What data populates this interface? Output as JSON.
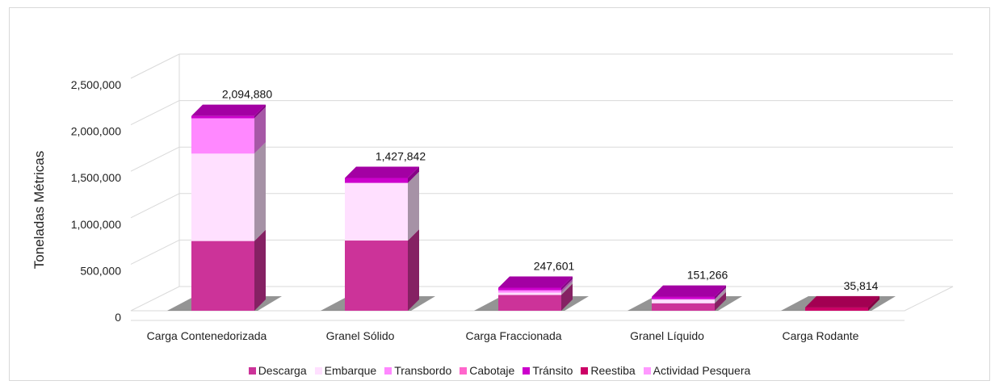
{
  "chart_data": {
    "type": "bar",
    "stacked": true,
    "ylabel": "Toneladas Métricas",
    "ylim": [
      0,
      2500000
    ],
    "yticks": [
      "0",
      "500,000",
      "1,000,000",
      "1,500,000",
      "2,000,000",
      "2,500,000"
    ],
    "categories": [
      "Carga Contenedorizada",
      "Granel Sólido",
      "Carga Fraccionada",
      "Granel Líquido",
      "Carga Rodante"
    ],
    "totals_labels": [
      "2,094,880",
      "1,427,842",
      "247,601",
      "151,266",
      "35,814"
    ],
    "totals": [
      2094880,
      1427842,
      247601,
      151266,
      35814
    ],
    "series": [
      {
        "name": "Descarga",
        "color": "#cc3399",
        "values": [
          750000,
          755000,
          170000,
          80000,
          0
        ]
      },
      {
        "name": "Embarque",
        "color": "#ffe0ff",
        "values": [
          940000,
          620000,
          25000,
          40000,
          0
        ]
      },
      {
        "name": "Transbordo",
        "color": "#ff88ff",
        "values": [
          380000,
          0,
          25000,
          6000,
          0
        ]
      },
      {
        "name": "Cabotaje",
        "color": "#ff66cc",
        "values": [
          0,
          0,
          0,
          0,
          0
        ]
      },
      {
        "name": "Tránsito",
        "color": "#cc00cc",
        "values": [
          24880,
          52842,
          27601,
          25266,
          0
        ]
      },
      {
        "name": "Reestiba",
        "color": "#cc0066",
        "values": [
          0,
          0,
          0,
          0,
          35814
        ]
      },
      {
        "name": "Actividad Pesquera",
        "color": "#ff99ff",
        "values": [
          0,
          0,
          0,
          0,
          0
        ]
      }
    ],
    "grid": true,
    "legend_position": "bottom"
  }
}
